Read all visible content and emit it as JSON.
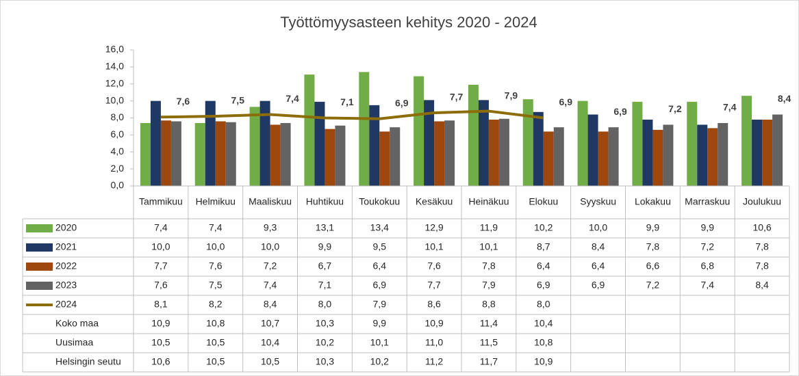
{
  "chart_data": {
    "type": "bar",
    "title": "Työttömyysasteen kehitys 2020  - 2024",
    "categories": [
      "Tammikuu",
      "Helmikuu",
      "Maaliskuu",
      "Huhtikuu",
      "Toukokuu",
      "Kesäkuu",
      "Heinäkuu",
      "Elokuu",
      "Syyskuu",
      "Lokakuu",
      "Marraskuu",
      "Joulukuu"
    ],
    "ylim": [
      0,
      16
    ],
    "yticks": [
      {
        "value": 0,
        "label": "0,0"
      },
      {
        "value": 2,
        "label": "2,0"
      },
      {
        "value": 4,
        "label": "4,0"
      },
      {
        "value": 6,
        "label": "6,0"
      },
      {
        "value": 8,
        "label": "8,0"
      },
      {
        "value": 10,
        "label": "10,0"
      },
      {
        "value": 12,
        "label": "12,0"
      },
      {
        "value": 14,
        "label": "14,0"
      },
      {
        "value": 16,
        "label": "16,0"
      }
    ],
    "grid": false,
    "series": [
      {
        "name": "2020",
        "type": "bar",
        "color": "#70ad47",
        "values": [
          7.4,
          7.4,
          9.3,
          13.1,
          13.4,
          12.9,
          11.9,
          10.2,
          10.0,
          9.9,
          9.9,
          10.6
        ],
        "value_labels": [
          "7,4",
          "7,4",
          "9,3",
          "13,1",
          "13,4",
          "12,9",
          "11,9",
          "10,2",
          "10,0",
          "9,9",
          "9,9",
          "10,6"
        ]
      },
      {
        "name": "2021",
        "type": "bar",
        "color": "#203864",
        "values": [
          10.0,
          10.0,
          10.0,
          9.9,
          9.5,
          10.1,
          10.1,
          8.7,
          8.4,
          7.8,
          7.2,
          7.8
        ],
        "value_labels": [
          "10,0",
          "10,0",
          "10,0",
          "9,9",
          "9,5",
          "10,1",
          "10,1",
          "8,7",
          "8,4",
          "7,8",
          "7,2",
          "7,8"
        ]
      },
      {
        "name": "2022",
        "type": "bar",
        "color": "#9e480e",
        "values": [
          7.7,
          7.6,
          7.2,
          6.7,
          6.4,
          7.6,
          7.8,
          6.4,
          6.4,
          6.6,
          6.8,
          7.8
        ],
        "value_labels": [
          "7,7",
          "7,6",
          "7,2",
          "6,7",
          "6,4",
          "7,6",
          "7,8",
          "6,4",
          "6,4",
          "6,6",
          "6,8",
          "7,8"
        ]
      },
      {
        "name": "2023",
        "type": "bar",
        "color": "#636363",
        "data_labels": true,
        "values": [
          7.6,
          7.5,
          7.4,
          7.1,
          6.9,
          7.7,
          7.9,
          6.9,
          6.9,
          7.2,
          7.4,
          8.4
        ],
        "value_labels": [
          "7,6",
          "7,5",
          "7,4",
          "7,1",
          "6,9",
          "7,7",
          "7,9",
          "6,9",
          "6,9",
          "7,2",
          "7,4",
          "8,4"
        ]
      },
      {
        "name": "2024",
        "type": "line",
        "color": "#8c6d0a",
        "values": [
          8.1,
          8.2,
          8.4,
          8.0,
          7.9,
          8.6,
          8.8,
          8.0,
          null,
          null,
          null,
          null
        ],
        "value_labels": [
          "8,1",
          "8,2",
          "8,4",
          "8,0",
          "7,9",
          "8,6",
          "8,8",
          "8,0",
          null,
          null,
          null,
          null
        ]
      }
    ],
    "table_rows": [
      {
        "name": "Koko maa",
        "values": [
          10.9,
          10.8,
          10.7,
          10.3,
          9.9,
          10.9,
          11.4,
          10.4,
          null,
          null,
          null,
          null
        ],
        "value_labels": [
          "10,9",
          "10,8",
          "10,7",
          "10,3",
          "9,9",
          "10,9",
          "11,4",
          "10,4",
          null,
          null,
          null,
          null
        ]
      },
      {
        "name": "Uusimaa",
        "values": [
          10.5,
          10.5,
          10.4,
          10.2,
          10.1,
          11.0,
          11.5,
          10.8,
          null,
          null,
          null,
          null
        ],
        "value_labels": [
          "10,5",
          "10,5",
          "10,4",
          "10,2",
          "10,1",
          "11,0",
          "11,5",
          "10,8",
          null,
          null,
          null,
          null
        ]
      },
      {
        "name": "Helsingin seutu",
        "values": [
          10.6,
          10.5,
          10.5,
          10.3,
          10.2,
          11.2,
          11.7,
          10.9,
          null,
          null,
          null,
          null
        ],
        "value_labels": [
          "10,6",
          "10,5",
          "10,5",
          "10,3",
          "10,2",
          "11,2",
          "11,7",
          "10,9",
          null,
          null,
          null,
          null
        ]
      }
    ]
  }
}
